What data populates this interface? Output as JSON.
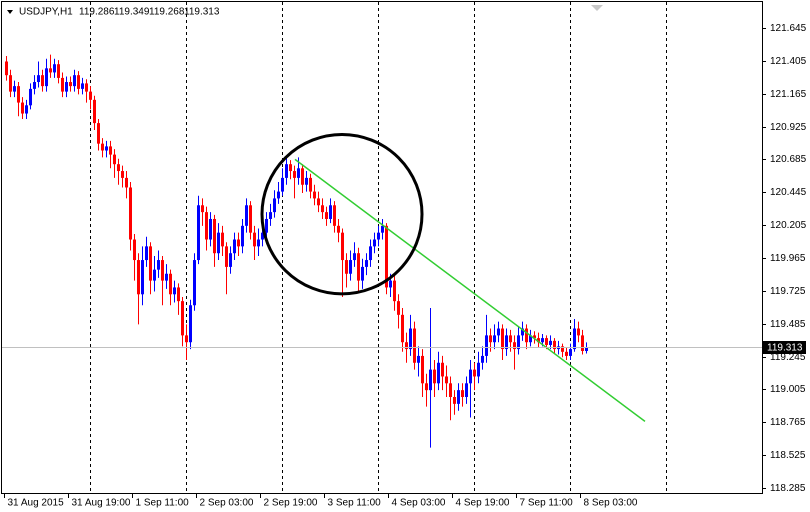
{
  "chart_data": {
    "type": "candlestick",
    "symbol": "USDJPY,H1",
    "up_color": "#0000ff",
    "down_color": "#ff0000",
    "xlim": [
      -1.5,
      189
    ],
    "ylim": [
      118.249,
      121.849
    ],
    "yticks": [
      121.645,
      121.405,
      121.165,
      120.925,
      120.685,
      120.445,
      120.205,
      119.965,
      119.725,
      119.485,
      119.245,
      119.005,
      118.765,
      118.525,
      118.285
    ],
    "xticks": [
      {
        "value": 0,
        "label": "31 Aug 2015"
      },
      {
        "value": 16,
        "label": "31 Aug 19:00"
      },
      {
        "value": 32,
        "label": "1 Sep 11:00"
      },
      {
        "value": 48,
        "label": "2 Sep 03:00"
      },
      {
        "value": 64,
        "label": "2 Sep 19:00"
      },
      {
        "value": 80,
        "label": "3 Sep 11:00"
      },
      {
        "value": 96,
        "label": "4 Sep 03:00"
      },
      {
        "value": 112,
        "label": "4 Sep 19:00"
      },
      {
        "value": 128,
        "label": "7 Sep 11:00"
      },
      {
        "value": 144,
        "label": "8 Sep 03:00"
      }
    ],
    "separators": [
      21,
      45,
      69,
      93,
      117,
      141,
      165
    ],
    "trendline": {
      "x": [
        72.25,
        159.75
      ],
      "y": [
        120.685,
        118.772
      ],
      "color": "#32cd32"
    },
    "circle": {
      "x": 84,
      "y": 120.285,
      "rx": 20,
      "ry": 0.582,
      "color": "#000000"
    },
    "ohlc": [
      [
        121.4,
        121.44,
        121.26,
        121.3
      ],
      [
        121.3,
        121.34,
        121.14,
        121.18
      ],
      [
        121.18,
        121.26,
        121.14,
        121.22
      ],
      [
        121.22,
        121.25,
        121.0,
        121.1
      ],
      [
        121.1,
        121.14,
        120.98,
        121.02
      ],
      [
        121.02,
        121.12,
        120.98,
        121.08
      ],
      [
        121.08,
        121.24,
        121.05,
        121.2
      ],
      [
        121.2,
        121.3,
        121.16,
        121.25
      ],
      [
        121.25,
        121.4,
        121.21,
        121.3
      ],
      [
        121.3,
        121.34,
        121.18,
        121.22
      ],
      [
        121.22,
        121.42,
        121.18,
        121.35
      ],
      [
        121.35,
        121.45,
        121.28,
        121.32
      ],
      [
        121.32,
        121.42,
        121.28,
        121.38
      ],
      [
        121.38,
        121.41,
        121.24,
        121.28
      ],
      [
        121.28,
        121.32,
        121.14,
        121.18
      ],
      [
        121.18,
        121.29,
        121.14,
        121.25
      ],
      [
        121.25,
        121.29,
        121.18,
        121.22
      ],
      [
        121.22,
        121.34,
        121.18,
        121.3
      ],
      [
        121.3,
        121.33,
        121.16,
        121.2
      ],
      [
        121.2,
        121.28,
        121.16,
        121.24
      ],
      [
        121.24,
        121.27,
        121.1,
        121.18
      ],
      [
        121.18,
        121.22,
        121.05,
        121.12
      ],
      [
        121.12,
        121.15,
        120.9,
        120.95
      ],
      [
        120.95,
        120.98,
        120.75,
        120.8
      ],
      [
        120.8,
        120.84,
        120.7,
        120.75
      ],
      [
        120.75,
        120.82,
        120.7,
        120.78
      ],
      [
        120.78,
        120.82,
        120.62,
        120.72
      ],
      [
        120.72,
        120.76,
        120.55,
        120.65
      ],
      [
        120.65,
        120.69,
        120.5,
        120.6
      ],
      [
        120.6,
        120.64,
        120.48,
        120.55
      ],
      [
        120.55,
        120.6,
        120.4,
        120.48
      ],
      [
        120.48,
        120.52,
        120.02,
        120.1
      ],
      [
        120.1,
        120.14,
        119.8,
        119.95
      ],
      [
        119.95,
        120.0,
        119.48,
        119.7
      ],
      [
        119.7,
        120.05,
        119.62,
        119.95
      ],
      [
        119.95,
        120.12,
        119.9,
        120.05
      ],
      [
        120.05,
        120.08,
        119.7,
        119.8
      ],
      [
        119.8,
        119.98,
        119.72,
        119.88
      ],
      [
        119.88,
        120.02,
        119.82,
        119.95
      ],
      [
        119.95,
        119.98,
        119.62,
        119.8
      ],
      [
        119.8,
        119.92,
        119.74,
        119.85
      ],
      [
        119.85,
        119.88,
        119.62,
        119.7
      ],
      [
        119.7,
        119.8,
        119.64,
        119.75
      ],
      [
        119.75,
        119.78,
        119.55,
        119.65
      ],
      [
        119.65,
        119.68,
        119.32,
        119.4
      ],
      [
        119.4,
        119.48,
        119.22,
        119.35
      ],
      [
        119.35,
        119.66,
        119.3,
        119.62
      ],
      [
        119.62,
        120.0,
        119.58,
        119.95
      ],
      [
        119.95,
        120.42,
        119.92,
        120.35
      ],
      [
        120.35,
        120.4,
        120.2,
        120.3
      ],
      [
        120.3,
        120.34,
        120.02,
        120.1
      ],
      [
        120.1,
        120.3,
        120.05,
        120.25
      ],
      [
        120.25,
        120.28,
        119.9,
        120.0
      ],
      [
        120.0,
        120.22,
        119.95,
        120.15
      ],
      [
        120.15,
        120.2,
        119.98,
        120.05
      ],
      [
        120.05,
        120.08,
        119.7,
        119.9
      ],
      [
        119.9,
        120.05,
        119.85,
        120.0
      ],
      [
        120.0,
        120.15,
        119.95,
        120.1
      ],
      [
        120.1,
        120.15,
        119.98,
        120.05
      ],
      [
        120.05,
        120.25,
        120.0,
        120.2
      ],
      [
        120.2,
        120.4,
        120.15,
        120.35
      ],
      [
        120.35,
        120.38,
        120.1,
        120.15
      ],
      [
        120.15,
        120.2,
        119.95,
        120.05
      ],
      [
        120.05,
        120.18,
        119.98,
        120.1
      ],
      [
        120.1,
        120.2,
        120.05,
        120.15
      ],
      [
        120.15,
        120.3,
        120.1,
        120.25
      ],
      [
        120.25,
        120.36,
        120.2,
        120.3
      ],
      [
        120.3,
        120.46,
        120.26,
        120.4
      ],
      [
        120.4,
        120.52,
        120.36,
        120.45
      ],
      [
        120.45,
        120.62,
        120.42,
        120.55
      ],
      [
        120.55,
        120.7,
        120.5,
        120.65
      ],
      [
        120.65,
        120.68,
        120.54,
        120.6
      ],
      [
        120.6,
        120.64,
        120.4,
        120.55
      ],
      [
        120.55,
        120.7,
        120.5,
        120.62
      ],
      [
        120.62,
        120.65,
        120.44,
        120.5
      ],
      [
        120.5,
        120.6,
        120.45,
        120.55
      ],
      [
        120.55,
        120.58,
        120.4,
        120.45
      ],
      [
        120.45,
        120.5,
        120.35,
        120.4
      ],
      [
        120.4,
        120.45,
        120.3,
        120.35
      ],
      [
        120.35,
        120.4,
        120.25,
        120.3
      ],
      [
        120.3,
        120.34,
        120.2,
        120.25
      ],
      [
        120.25,
        120.4,
        120.22,
        120.35
      ],
      [
        120.35,
        120.38,
        120.15,
        120.2
      ],
      [
        120.2,
        120.25,
        120.08,
        120.15
      ],
      [
        120.15,
        120.18,
        119.68,
        119.95
      ],
      [
        119.95,
        120.0,
        119.75,
        119.85
      ],
      [
        119.85,
        120.02,
        119.8,
        119.95
      ],
      [
        119.95,
        120.08,
        119.9,
        120.0
      ],
      [
        120.0,
        120.04,
        119.72,
        119.8
      ],
      [
        119.8,
        119.96,
        119.74,
        119.9
      ],
      [
        119.9,
        120.0,
        119.84,
        119.95
      ],
      [
        119.95,
        120.1,
        119.9,
        120.05
      ],
      [
        120.05,
        120.15,
        120.0,
        120.1
      ],
      [
        120.1,
        120.2,
        120.05,
        120.15
      ],
      [
        120.15,
        120.25,
        120.1,
        120.2
      ],
      [
        120.2,
        120.22,
        119.7,
        119.75
      ],
      [
        119.75,
        119.85,
        119.68,
        119.8
      ],
      [
        119.8,
        119.84,
        119.58,
        119.65
      ],
      [
        119.65,
        119.7,
        119.45,
        119.55
      ],
      [
        119.55,
        119.6,
        119.28,
        119.35
      ],
      [
        119.35,
        119.42,
        119.2,
        119.3
      ],
      [
        119.3,
        119.55,
        119.25,
        119.45
      ],
      [
        119.45,
        119.5,
        119.15,
        119.2
      ],
      [
        119.2,
        119.32,
        119.1,
        119.25
      ],
      [
        119.25,
        119.3,
        118.95,
        119.05
      ],
      [
        119.05,
        119.12,
        118.88,
        119.0
      ],
      [
        119.0,
        119.6,
        118.58,
        119.15
      ],
      [
        119.15,
        119.22,
        118.95,
        119.05
      ],
      [
        119.05,
        119.28,
        119.0,
        119.2
      ],
      [
        119.2,
        119.25,
        119.0,
        119.1
      ],
      [
        119.1,
        119.18,
        118.95,
        119.05
      ],
      [
        119.05,
        119.1,
        118.78,
        118.95
      ],
      [
        118.95,
        119.0,
        118.82,
        118.9
      ],
      [
        118.9,
        119.05,
        118.85,
        119.0
      ],
      [
        119.0,
        119.05,
        118.88,
        118.95
      ],
      [
        118.95,
        119.1,
        118.9,
        119.05
      ],
      [
        119.05,
        119.22,
        118.8,
        119.15
      ],
      [
        119.15,
        119.2,
        119.0,
        119.1
      ],
      [
        119.1,
        119.28,
        119.05,
        119.2
      ],
      [
        119.2,
        119.32,
        119.15,
        119.25
      ],
      [
        119.25,
        119.55,
        119.2,
        119.4
      ],
      [
        119.4,
        119.45,
        119.28,
        119.35
      ],
      [
        119.35,
        119.48,
        119.3,
        119.4
      ],
      [
        119.4,
        119.5,
        119.35,
        119.45
      ],
      [
        119.45,
        119.48,
        119.22,
        119.3
      ],
      [
        119.3,
        119.45,
        119.25,
        119.4
      ],
      [
        119.4,
        119.44,
        119.28,
        119.35
      ],
      [
        119.35,
        119.4,
        119.15,
        119.3
      ],
      [
        119.3,
        119.46,
        119.26,
        119.4
      ],
      [
        119.4,
        119.5,
        119.36,
        119.45
      ],
      [
        119.45,
        119.48,
        119.3,
        119.35
      ],
      [
        119.35,
        119.44,
        119.32,
        119.4
      ],
      [
        119.4,
        119.43,
        119.34,
        119.38
      ],
      [
        119.38,
        119.42,
        119.31,
        119.35
      ],
      [
        119.35,
        119.41,
        119.32,
        119.38
      ],
      [
        119.38,
        119.4,
        119.3,
        119.33
      ],
      [
        119.33,
        119.4,
        119.3,
        119.36
      ],
      [
        119.36,
        119.38,
        119.27,
        119.3
      ],
      [
        119.3,
        119.36,
        119.26,
        119.32
      ],
      [
        119.32,
        119.34,
        119.24,
        119.28
      ],
      [
        119.28,
        119.31,
        119.22,
        119.25
      ],
      [
        119.25,
        119.34,
        119.22,
        119.3
      ],
      [
        119.3,
        119.52,
        119.28,
        119.45
      ],
      [
        119.45,
        119.5,
        119.35,
        119.4
      ],
      [
        119.4,
        119.44,
        119.26,
        119.286
      ],
      [
        119.286,
        119.349,
        119.268,
        119.313
      ]
    ]
  }
}
